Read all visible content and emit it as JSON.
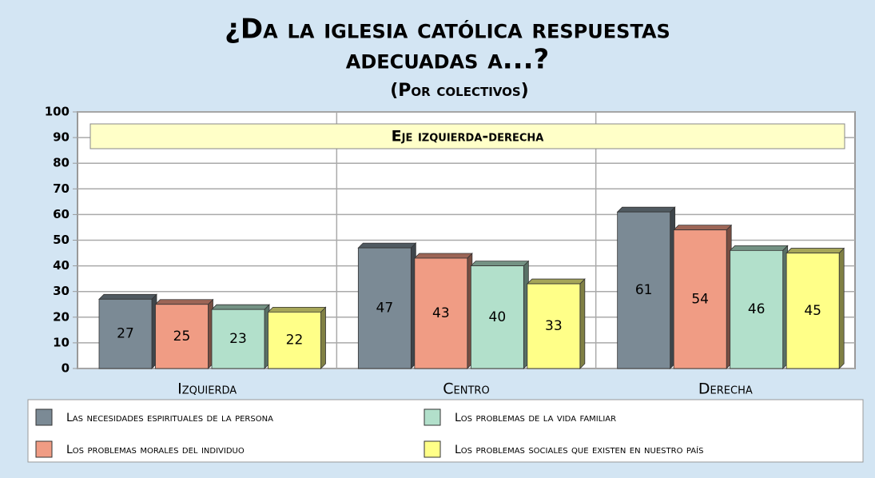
{
  "chart_data": {
    "type": "bar",
    "title": [
      "¿Da la iglesia católica respuestas",
      "adecuadas a...?"
    ],
    "subtitle": "(Por colectivos)",
    "annotation": "Eje izquierda-derecha",
    "categories": [
      "Izquierda",
      "Centro",
      "Derecha"
    ],
    "series": [
      {
        "name": "Las necesidades espirituales de la persona",
        "color": "#7b8a95",
        "values": [
          27,
          47,
          61
        ]
      },
      {
        "name": "Los problemas morales del individuo",
        "color": "#f09c84",
        "values": [
          25,
          43,
          54
        ]
      },
      {
        "name": "Los problemas de la vida familiar",
        "color": "#b2e0cb",
        "values": [
          23,
          40,
          46
        ]
      },
      {
        "name": "Los problemas sociales que existen en nuestro país",
        "color": "#ffff88",
        "values": [
          22,
          33,
          45
        ]
      }
    ],
    "ylim": [
      0,
      100
    ],
    "yticks": [
      0,
      10,
      20,
      30,
      40,
      50,
      60,
      70,
      80,
      90,
      100
    ],
    "grid": true
  }
}
